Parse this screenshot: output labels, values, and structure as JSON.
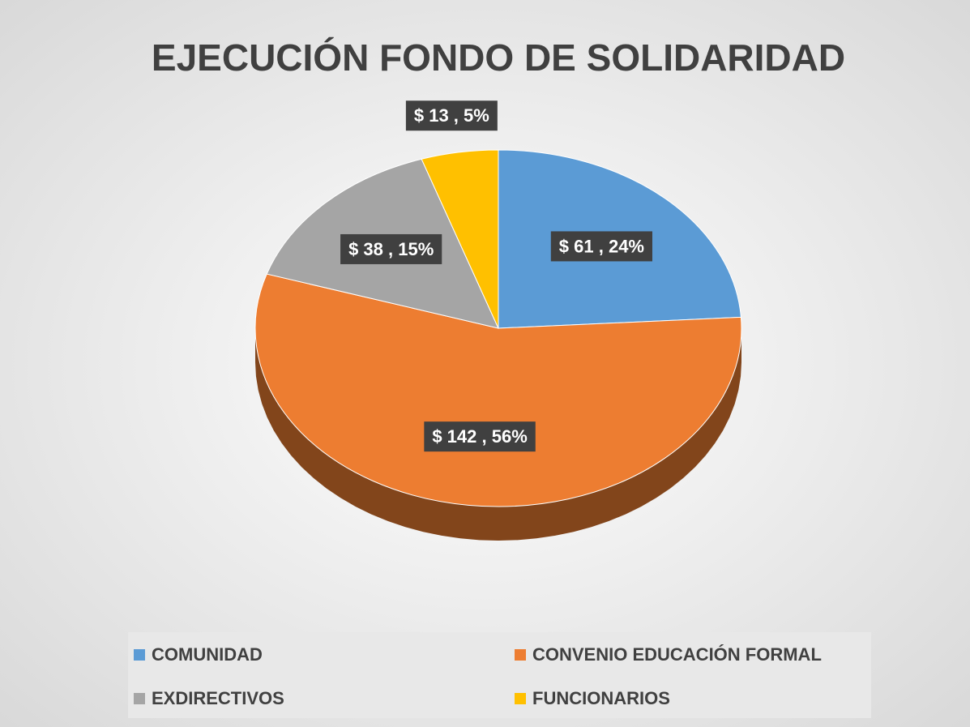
{
  "chart_data": {
    "type": "pie",
    "title": "EJECUCIÓN FONDO DE SOLIDARIDAD",
    "categories": [
      "COMUNIDAD",
      "CONVENIO EDUCACIÓN FORMAL",
      "EXDIRECTIVOS",
      "FUNCIONARIOS"
    ],
    "values": [
      61,
      142,
      38,
      13
    ],
    "value_labels": [
      "$ 61 , 24%",
      "$ 142 , 56%",
      "$ 38 , 15%",
      "$ 13 , 5%"
    ],
    "colors": [
      "#5b9bd5",
      "#ed7d31",
      "#a5a5a5",
      "#ffc000"
    ],
    "legend": "bottom"
  }
}
